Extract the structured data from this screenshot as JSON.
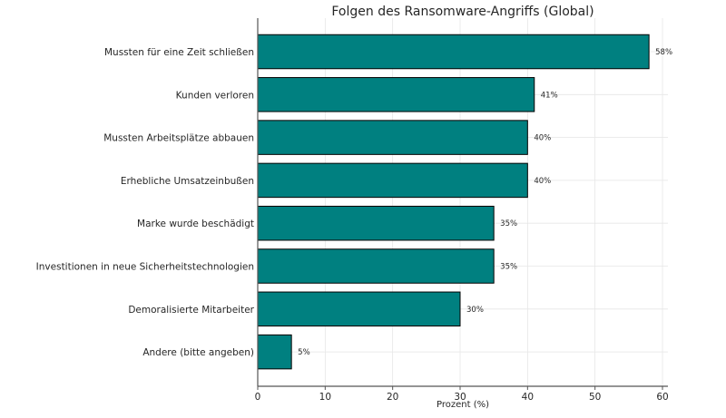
{
  "chart_data": {
    "type": "bar",
    "orientation": "horizontal",
    "title": "Folgen des Ransomware-Angriffs (Global)",
    "xlabel": "Prozent (%)",
    "ylabel": "",
    "categories": [
      "Mussten für eine Zeit schließen",
      "Kunden verloren",
      "Mussten Arbeitsplätze abbauen",
      "Erhebliche Umsatzeinbußen",
      "Marke wurde beschädigt",
      "Investitionen in neue Sicherheitstechnologien",
      "Demoralisierte Mitarbeiter",
      "Andere (bitte angeben)"
    ],
    "values": [
      58,
      41,
      40,
      40,
      35,
      35,
      30,
      5
    ],
    "value_labels": [
      "58%",
      "41%",
      "40%",
      "40%",
      "35%",
      "35%",
      "30%",
      "5%"
    ],
    "xlim": [
      0,
      61
    ],
    "xticks": [
      0,
      10,
      20,
      30,
      40,
      50,
      60
    ],
    "xtick_labels": [
      "0",
      "10",
      "20",
      "30",
      "40",
      "50",
      "60"
    ],
    "grid": true,
    "bar_color": "#008080",
    "edge_color": "#000000"
  }
}
